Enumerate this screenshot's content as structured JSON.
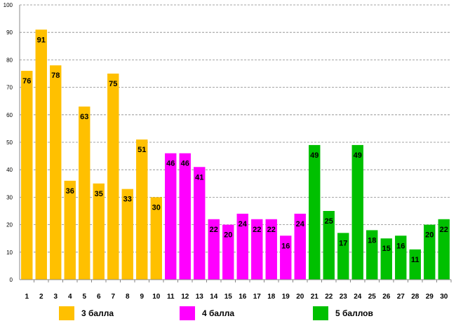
{
  "chart_data": {
    "type": "bar",
    "title": "",
    "xlabel": "",
    "ylabel": "",
    "ylim": [
      0,
      100
    ],
    "yticks": [
      0,
      10,
      20,
      30,
      40,
      50,
      60,
      70,
      80,
      90,
      100
    ],
    "grid": true,
    "categories": [
      "1",
      "2",
      "3",
      "4",
      "5",
      "6",
      "7",
      "8",
      "9",
      "10",
      "11",
      "12",
      "13",
      "14",
      "15",
      "16",
      "17",
      "18",
      "19",
      "20",
      "21",
      "22",
      "23",
      "24",
      "25",
      "26",
      "27",
      "28",
      "29",
      "30"
    ],
    "values": [
      76,
      91,
      78,
      36,
      63,
      35,
      75,
      33,
      51,
      30,
      46,
      46,
      41,
      22,
      20,
      24,
      22,
      22,
      16,
      24,
      49,
      25,
      17,
      49,
      18,
      15,
      16,
      11,
      20,
      22
    ],
    "groups": [
      {
        "name": "3 балла",
        "color": "#FFC000",
        "from": 1,
        "to": 10
      },
      {
        "name": "4 балла",
        "color": "#FF00FF",
        "from": 11,
        "to": 20
      },
      {
        "name": "5 баллов",
        "color": "#00C000",
        "from": 21,
        "to": 30
      }
    ],
    "legend_position": "bottom"
  }
}
